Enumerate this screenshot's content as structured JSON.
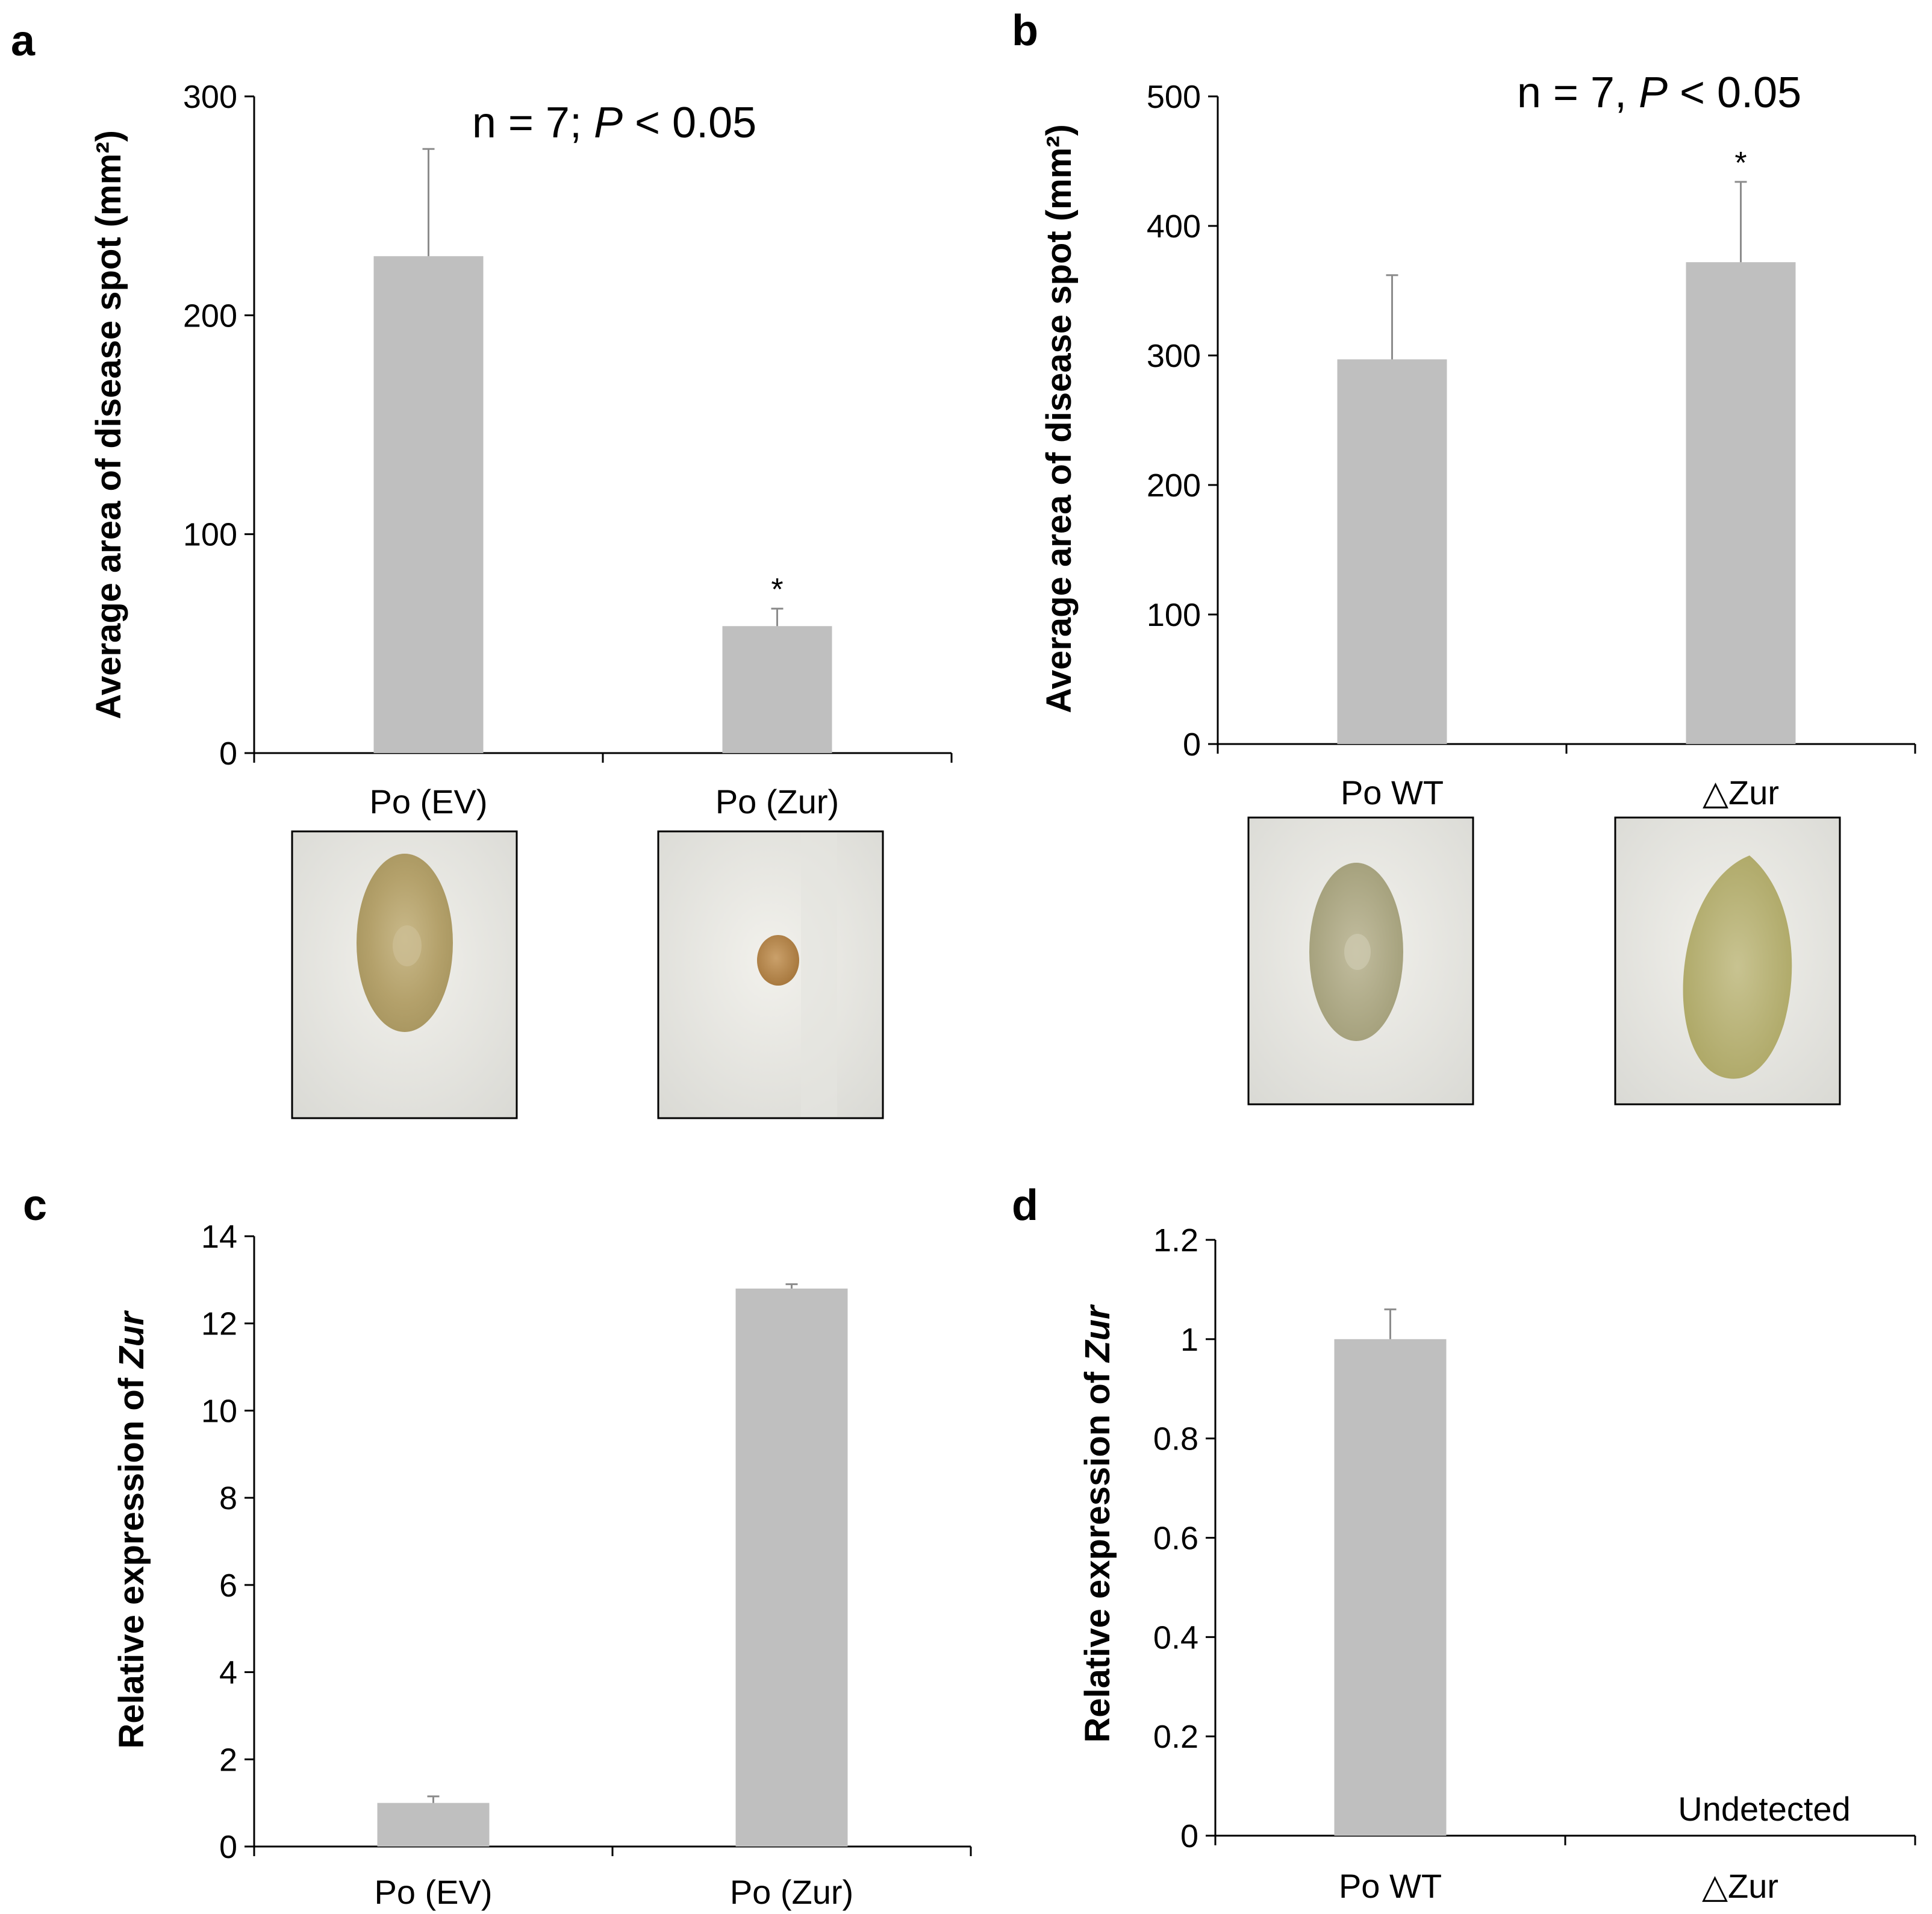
{
  "panels": [
    {
      "id": "a",
      "label": "a"
    },
    {
      "id": "b",
      "label": "b"
    },
    {
      "id": "c",
      "label": "c"
    },
    {
      "id": "d",
      "label": "d"
    }
  ],
  "colors": {
    "bar": "#bfbfbf",
    "error_bar": "#8c8c8c",
    "axis": "#000000"
  },
  "chart_data": [
    {
      "panel": "a",
      "type": "bar",
      "ylabel": "Average area of disease spot (mm²)",
      "annotation": "n = 7; P < 0.05",
      "categories": [
        "Po (EV)",
        "Po (Zur)"
      ],
      "values": [
        227,
        58
      ],
      "errors": [
        49,
        8
      ],
      "significance": [
        "",
        "*"
      ],
      "ylim": [
        0,
        300
      ],
      "yticks": [
        0,
        100,
        200,
        300
      ],
      "grid": false
    },
    {
      "panel": "b",
      "type": "bar",
      "ylabel": "Average area of disease spot (mm²)",
      "annotation": "n = 7, P < 0.05",
      "categories": [
        "Po WT",
        "△Zur"
      ],
      "values": [
        297,
        372
      ],
      "errors": [
        65,
        62
      ],
      "significance": [
        "",
        "*"
      ],
      "ylim": [
        0,
        500
      ],
      "yticks": [
        0,
        100,
        200,
        300,
        400,
        500
      ],
      "grid": false
    },
    {
      "panel": "c",
      "type": "bar",
      "ylabel": "Relative expression of Zur",
      "categories": [
        "Po (EV)",
        "Po (Zur)"
      ],
      "values": [
        1.0,
        12.8
      ],
      "errors": [
        0.15,
        0.1
      ],
      "ylim": [
        0,
        14
      ],
      "yticks": [
        0,
        2,
        4,
        6,
        8,
        10,
        12,
        14
      ],
      "grid": false
    },
    {
      "panel": "d",
      "type": "bar",
      "ylabel": "Relative expression of Zur",
      "categories": [
        "Po WT",
        "△Zur"
      ],
      "values": [
        1.0,
        0
      ],
      "errors": [
        0.06,
        0
      ],
      "bar_notes": [
        "",
        "Undetected"
      ],
      "ylim": [
        0,
        1.2
      ],
      "yticks": [
        0,
        0.2,
        0.4,
        0.6,
        0.8,
        1,
        1.2
      ],
      "grid": false
    }
  ]
}
